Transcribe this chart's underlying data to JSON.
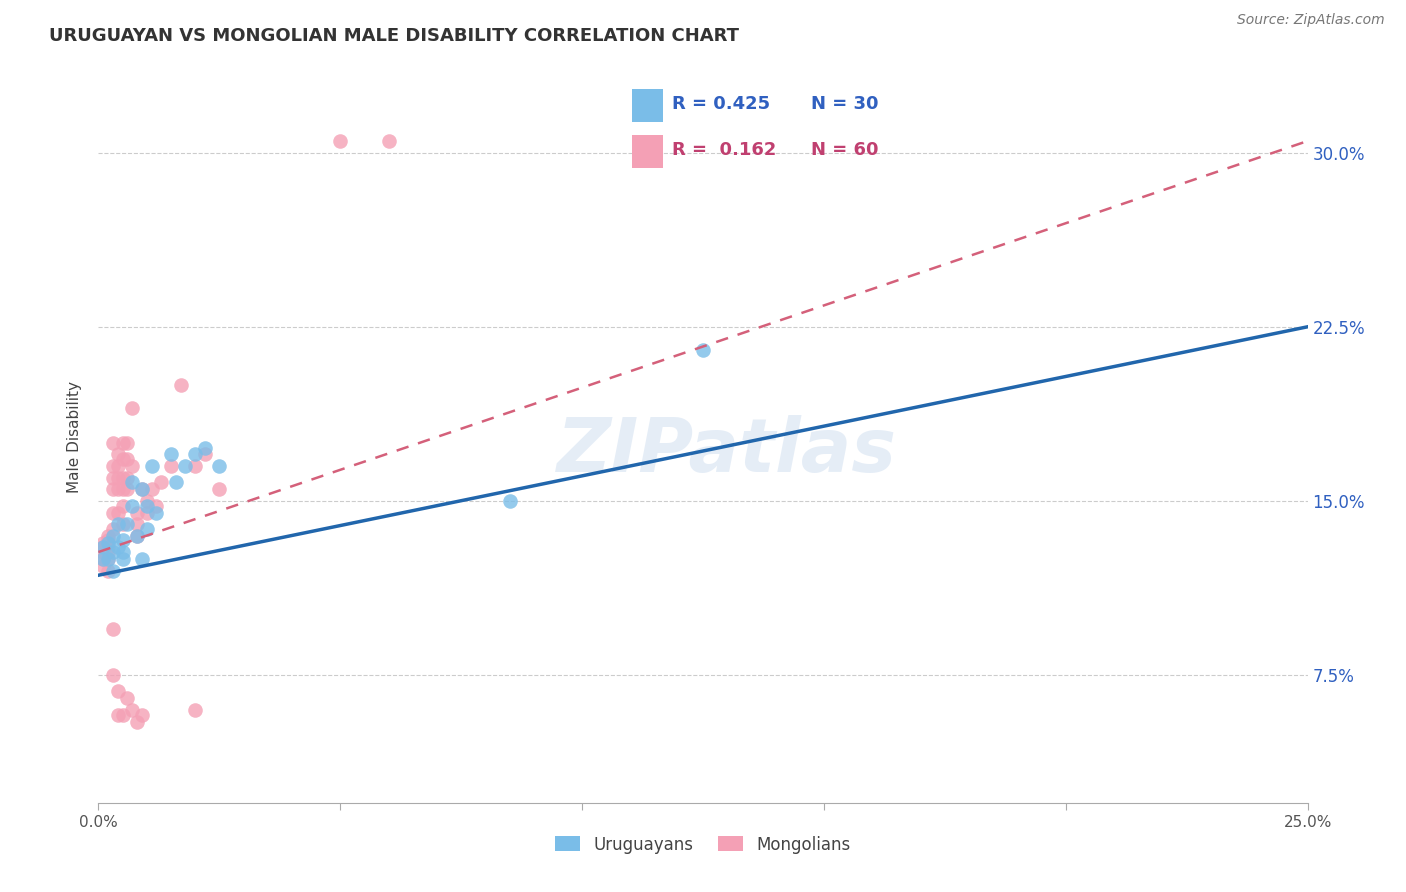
{
  "title": "URUGUAYAN VS MONGOLIAN MALE DISABILITY CORRELATION CHART",
  "ylabel": "Male Disability",
  "source": "Source: ZipAtlas.com",
  "ytick_labels": [
    "7.5%",
    "15.0%",
    "22.5%",
    "30.0%"
  ],
  "ytick_values": [
    0.075,
    0.15,
    0.225,
    0.3
  ],
  "xtick_values": [
    0.0,
    0.05,
    0.1,
    0.15,
    0.2,
    0.25
  ],
  "xtick_labels": [
    "0.0%",
    "",
    "",
    "",
    "",
    "25.0%"
  ],
  "xlim": [
    0.0,
    0.25
  ],
  "ylim": [
    0.02,
    0.335
  ],
  "legend_blue_r": "0.425",
  "legend_blue_n": "30",
  "legend_pink_r": "0.162",
  "legend_pink_n": "60",
  "blue_color": "#7abde8",
  "pink_color": "#f4a0b5",
  "trendline_blue_color": "#2166ac",
  "trendline_pink_color": "#d4607a",
  "watermark": "ZIPatlas",
  "blue_trendline_x": [
    0.0,
    0.25
  ],
  "blue_trendline_y": [
    0.118,
    0.225
  ],
  "pink_trendline_x": [
    0.0,
    0.25
  ],
  "pink_trendline_y": [
    0.128,
    0.305
  ],
  "blue_points_x": [
    0.001,
    0.001,
    0.002,
    0.002,
    0.003,
    0.003,
    0.003,
    0.004,
    0.004,
    0.005,
    0.005,
    0.005,
    0.006,
    0.007,
    0.007,
    0.008,
    0.009,
    0.009,
    0.01,
    0.01,
    0.011,
    0.012,
    0.015,
    0.016,
    0.018,
    0.02,
    0.022,
    0.025,
    0.085,
    0.125
  ],
  "blue_points_y": [
    0.125,
    0.13,
    0.125,
    0.132,
    0.128,
    0.135,
    0.12,
    0.13,
    0.14,
    0.133,
    0.125,
    0.128,
    0.14,
    0.158,
    0.148,
    0.135,
    0.155,
    0.125,
    0.148,
    0.138,
    0.165,
    0.145,
    0.17,
    0.158,
    0.165,
    0.17,
    0.173,
    0.165,
    0.15,
    0.215
  ],
  "pink_points_x": [
    0.001,
    0.001,
    0.001,
    0.001,
    0.001,
    0.002,
    0.002,
    0.002,
    0.002,
    0.002,
    0.002,
    0.003,
    0.003,
    0.003,
    0.003,
    0.003,
    0.003,
    0.004,
    0.004,
    0.004,
    0.004,
    0.004,
    0.005,
    0.005,
    0.005,
    0.005,
    0.005,
    0.005,
    0.006,
    0.006,
    0.006,
    0.006,
    0.007,
    0.007,
    0.008,
    0.008,
    0.008,
    0.009,
    0.01,
    0.01,
    0.011,
    0.012,
    0.013,
    0.015,
    0.017,
    0.02,
    0.022,
    0.025,
    0.05,
    0.06,
    0.003,
    0.003,
    0.004,
    0.004,
    0.005,
    0.006,
    0.007,
    0.008,
    0.009,
    0.02
  ],
  "pink_points_y": [
    0.13,
    0.125,
    0.128,
    0.132,
    0.122,
    0.13,
    0.128,
    0.125,
    0.135,
    0.12,
    0.133,
    0.175,
    0.165,
    0.16,
    0.155,
    0.145,
    0.138,
    0.17,
    0.165,
    0.16,
    0.155,
    0.145,
    0.175,
    0.168,
    0.16,
    0.155,
    0.148,
    0.14,
    0.175,
    0.168,
    0.16,
    0.155,
    0.19,
    0.165,
    0.145,
    0.14,
    0.135,
    0.155,
    0.15,
    0.145,
    0.155,
    0.148,
    0.158,
    0.165,
    0.2,
    0.165,
    0.17,
    0.155,
    0.305,
    0.305,
    0.095,
    0.075,
    0.068,
    0.058,
    0.058,
    0.065,
    0.06,
    0.055,
    0.058,
    0.06
  ]
}
